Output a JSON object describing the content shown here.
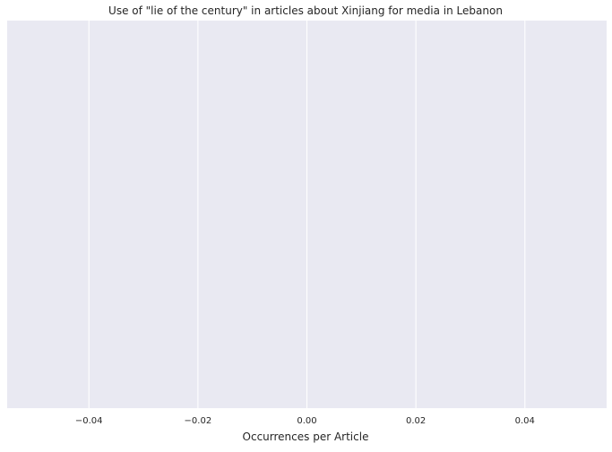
{
  "chart_data": {
    "type": "bar",
    "title": "Use of \"lie of the century\" in articles about Xinjiang for media in Lebanon",
    "xlabel": "Occurrences per Article",
    "ylabel": "",
    "orientation": "horizontal",
    "categories": [],
    "values": [],
    "xlim": [
      -0.055,
      0.055
    ],
    "xticks": [
      -0.04,
      -0.02,
      0.0,
      0.02,
      0.04
    ],
    "xtick_labels": [
      "−0.04",
      "−0.02",
      "0.00",
      "0.02",
      "0.04"
    ],
    "grid": true,
    "legend": "none",
    "colors": {
      "plot_background": "#e9e9f2",
      "grid": "#ffffff",
      "text": "#262626"
    }
  }
}
